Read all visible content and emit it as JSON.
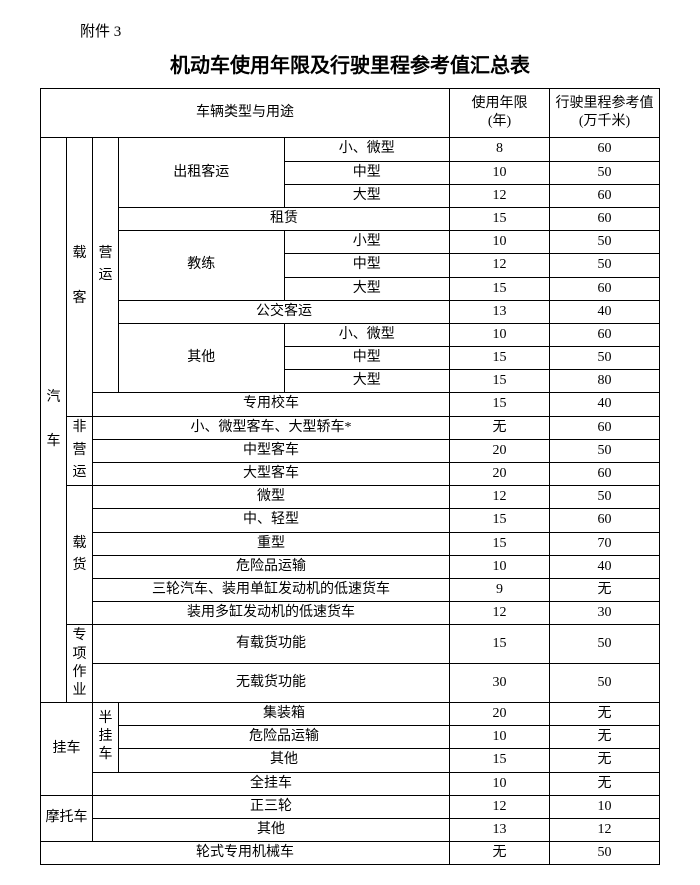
{
  "attachment_label": "附件 3",
  "title": "机动车使用年限及行驶里程参考值汇总表",
  "headers": {
    "category": "车辆类型与用途",
    "age": "使用年限\n(年)",
    "mileage": "行驶里程参考值\n(万千米)"
  },
  "labels": {
    "car": "汽\n\n车",
    "passenger": "载\n\n客",
    "operating": "营\n运",
    "non_operating": "非\n营\n运",
    "cargo": "载\n货",
    "special": "专项\n作业",
    "trailer": "挂车",
    "semi_trailer": "半挂车",
    "motorcycle": "摩托车",
    "wheel_machine": "轮式专用机械车",
    "taxi": "出租客运",
    "rental": "租赁",
    "training": "教练",
    "bus": "公交客运",
    "other": "其他",
    "school_bus": "专用校车",
    "small_micro": "小、微型",
    "medium": "中型",
    "large": "大型",
    "small": "小型",
    "nonop_small": "小、微型客车、大型轿车*",
    "nonop_medium": "中型客车",
    "nonop_large": "大型客车",
    "micro": "微型",
    "mid_light": "中、轻型",
    "heavy": "重型",
    "hazmat": "危险品运输",
    "tricycle_single": "三轮汽车、装用单缸发动机的低速货车",
    "multi_cyl": "装用多缸发动机的低速货车",
    "with_cargo": "有载货功能",
    "without_cargo": "无载货功能",
    "container": "集装箱",
    "full_trailer": "全挂车",
    "moto_tricycle": "正三轮",
    "moto_other": "其他"
  },
  "rows": {
    "taxi_sm": {
      "age": "8",
      "mile": "60"
    },
    "taxi_md": {
      "age": "10",
      "mile": "50"
    },
    "taxi_lg": {
      "age": "12",
      "mile": "60"
    },
    "rental": {
      "age": "15",
      "mile": "60"
    },
    "train_sm": {
      "age": "10",
      "mile": "50"
    },
    "train_md": {
      "age": "12",
      "mile": "50"
    },
    "train_lg": {
      "age": "15",
      "mile": "60"
    },
    "bus": {
      "age": "13",
      "mile": "40"
    },
    "other_sm": {
      "age": "10",
      "mile": "60"
    },
    "other_md": {
      "age": "15",
      "mile": "50"
    },
    "other_lg": {
      "age": "15",
      "mile": "80"
    },
    "school": {
      "age": "15",
      "mile": "40"
    },
    "nonop_sm": {
      "age": "无",
      "mile": "60"
    },
    "nonop_md": {
      "age": "20",
      "mile": "50"
    },
    "nonop_lg": {
      "age": "20",
      "mile": "60"
    },
    "cargo_micro": {
      "age": "12",
      "mile": "50"
    },
    "cargo_ml": {
      "age": "15",
      "mile": "60"
    },
    "cargo_hv": {
      "age": "15",
      "mile": "70"
    },
    "cargo_haz": {
      "age": "10",
      "mile": "40"
    },
    "cargo_tri": {
      "age": "9",
      "mile": "无"
    },
    "cargo_multi": {
      "age": "12",
      "mile": "30"
    },
    "spec_with": {
      "age": "15",
      "mile": "50"
    },
    "spec_wo": {
      "age": "30",
      "mile": "50"
    },
    "tr_cont": {
      "age": "20",
      "mile": "无"
    },
    "tr_haz": {
      "age": "10",
      "mile": "无"
    },
    "tr_other": {
      "age": "15",
      "mile": "无"
    },
    "tr_full": {
      "age": "10",
      "mile": "无"
    },
    "moto_tri": {
      "age": "12",
      "mile": "10"
    },
    "moto_oth": {
      "age": "13",
      "mile": "12"
    },
    "wheel": {
      "age": "无",
      "mile": "50"
    }
  }
}
